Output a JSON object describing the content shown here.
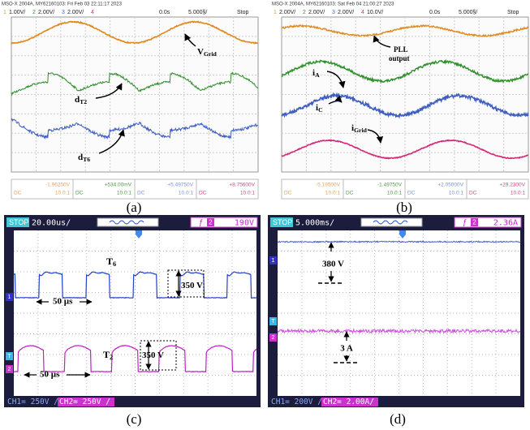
{
  "panels": [
    {
      "caption": "(a)",
      "header": "MSO-X 2004A, MY62160103: Fri Feb 03 22:11:17 2023",
      "channels": [
        {
          "num": "1",
          "scale": "1.00V/"
        },
        {
          "num": "2",
          "scale": "2.00V/"
        },
        {
          "num": "3",
          "scale": "2.00V/"
        },
        {
          "num": "4"
        }
      ],
      "time_offset": "0.0s",
      "timebase": "5.000§/",
      "status": "Stop",
      "annotations": [
        {
          "text": "V",
          "sub": "Grid"
        },
        {
          "text": "d",
          "sub": "T2"
        },
        {
          "text": "d",
          "sub": "T6"
        }
      ],
      "footer": [
        {
          "offset": "-1.96250V",
          "coupling": "DC",
          "probe": "10.0:1"
        },
        {
          "offset": "+534.00mV",
          "coupling": "DC",
          "probe": "10.0:1"
        },
        {
          "offset": "+5.49750V",
          "coupling": "DC",
          "probe": "10.0:1"
        },
        {
          "offset": "+8.75600V",
          "coupling": "DC",
          "probe": "10.0:1"
        }
      ]
    },
    {
      "caption": "(b)",
      "header": "MSO-X 2004A, MY62160103: Sat Feb 04 21:00:27 2023",
      "channels": [
        {
          "num": "1",
          "scale": "2.00V/"
        },
        {
          "num": "2",
          "scale": "2.00V/"
        },
        {
          "num": "3",
          "scale": "2.00V/"
        },
        {
          "num": "4",
          "scale": "10.0V/"
        }
      ],
      "time_offset": "0.0s",
      "timebase": "5.000§/",
      "status": "Stop",
      "annotations": [
        {
          "text": "PLL"
        },
        {
          "text": "output"
        },
        {
          "text": "i",
          "sub": "A"
        },
        {
          "text": "i",
          "sub": "C"
        },
        {
          "text": "i",
          "sub": "Grid"
        }
      ],
      "footer": [
        {
          "offset": "-5.19500V",
          "coupling": "DC",
          "probe": "10.0:1"
        },
        {
          "offset": "-1.49750V",
          "coupling": "DC",
          "probe": "10.0:1"
        },
        {
          "offset": "+2.05000V",
          "coupling": "DC",
          "probe": "10.0:1"
        },
        {
          "offset": "+29.2300V",
          "coupling": "DC",
          "probe": "10.0:1"
        }
      ]
    },
    {
      "caption": "(c)",
      "status": "STOP",
      "timebase": "20.00us/",
      "trigger_icon": "ƒ",
      "trigger_source": "2",
      "trigger_level": "190V",
      "markers": [
        "1",
        "T",
        "2"
      ],
      "annotations": [
        {
          "text": "T",
          "sub": "6"
        },
        {
          "text": "350 V"
        },
        {
          "text": "50 µs"
        },
        {
          "text": "T",
          "sub": "2"
        },
        {
          "text": "350 V"
        },
        {
          "text": "50 µs"
        }
      ],
      "channel_scales": [
        "CH1= 250V /",
        "CH2= 250V /"
      ]
    },
    {
      "caption": "(d)",
      "status": "STOP",
      "timebase": "5.000ms/",
      "trigger_icon": "ƒ",
      "trigger_source": "2",
      "trigger_level": "2.36A",
      "markers": [
        "1",
        "T",
        "2"
      ],
      "annotations": [
        {
          "text": "380 V"
        },
        {
          "text": "3 A"
        }
      ],
      "channel_scales": [
        "CH1= 200V /",
        "CH2= 2.00A/"
      ]
    }
  ]
}
